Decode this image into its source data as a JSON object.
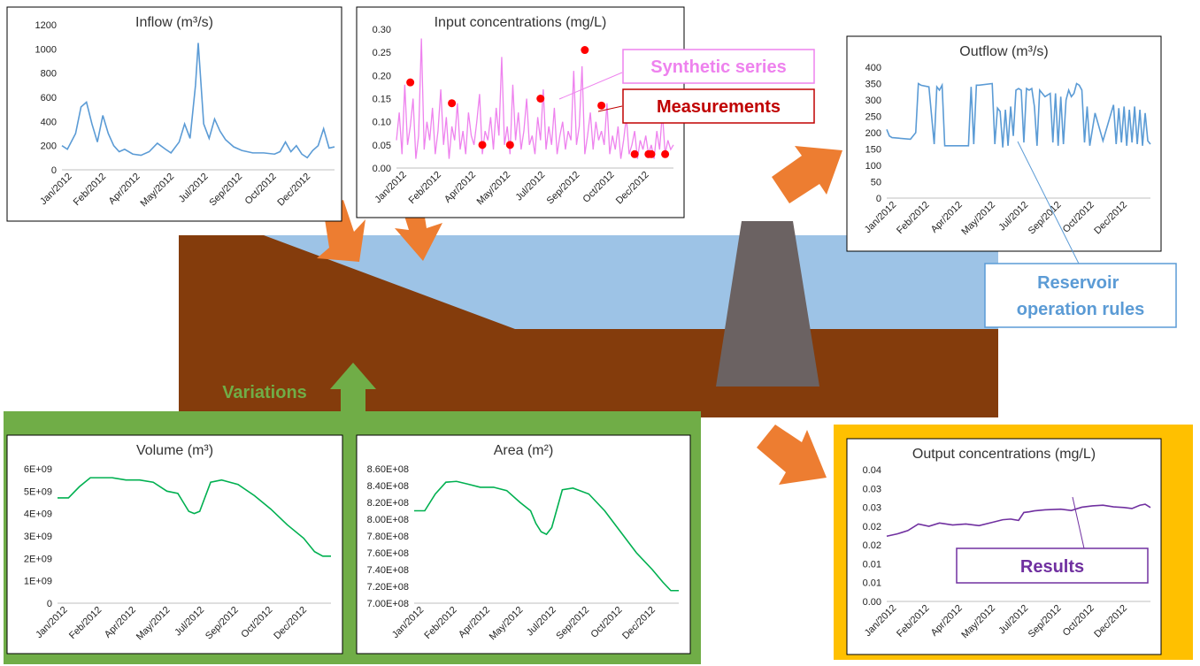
{
  "colors": {
    "soil": "#843c0c",
    "water": "#9dc3e6",
    "dam": "#6b6262",
    "arrow": "#ed7d31",
    "green_panel": "#70ad47",
    "yellow_frame": "#ffc000",
    "inflow_line": "#5b9bd5",
    "synthetic_line": "#ee82ee",
    "measure_dot": "#ff0000",
    "volume_line": "#00b050",
    "output_line": "#7030a0",
    "label_variations": "#70ad47",
    "label_synthetic": "#ee82ee",
    "label_measure": "#c00000",
    "label_rules": "#5b9bd5",
    "label_results": "#7030a0"
  },
  "labels": {
    "synthetic": "Synthetic series",
    "measurements": "Measurements",
    "reservoir_rules": "Reservoir operation rules",
    "variations": "Variations",
    "results": "Results"
  },
  "chart_data": [
    {
      "id": "inflow",
      "type": "line",
      "title": "Inflow (m³/s)",
      "ylim": [
        0,
        1200
      ],
      "yticks": [
        "0",
        "200",
        "400",
        "600",
        "800",
        "1000",
        "1200"
      ],
      "xticks": [
        "Jan/2012",
        "Feb/2012",
        "Apr/2012",
        "May/2012",
        "Jul/2012",
        "Sep/2012",
        "Oct/2012",
        "Dec/2012"
      ],
      "x": [
        0,
        0.02,
        0.05,
        0.07,
        0.09,
        0.11,
        0.13,
        0.15,
        0.17,
        0.19,
        0.21,
        0.23,
        0.26,
        0.29,
        0.32,
        0.35,
        0.38,
        0.4,
        0.43,
        0.45,
        0.47,
        0.49,
        0.5,
        0.52,
        0.54,
        0.56,
        0.58,
        0.6,
        0.63,
        0.66,
        0.7,
        0.74,
        0.78,
        0.8,
        0.82,
        0.84,
        0.86,
        0.88,
        0.9,
        0.92,
        0.94,
        0.96,
        0.98,
        1.0
      ],
      "y": [
        200,
        170,
        300,
        520,
        560,
        380,
        230,
        450,
        300,
        200,
        150,
        170,
        130,
        120,
        150,
        220,
        170,
        140,
        230,
        380,
        260,
        700,
        1050,
        380,
        260,
        420,
        320,
        250,
        190,
        160,
        140,
        140,
        130,
        150,
        230,
        150,
        200,
        130,
        100,
        160,
        200,
        340,
        180,
        190
      ],
      "series": [
        {
          "name": "",
          "color": "#5b9bd5"
        }
      ]
    },
    {
      "id": "input",
      "type": "line",
      "title": "Input concentrations (mg/L)",
      "ylim": [
        0,
        0.3
      ],
      "yticks": [
        "0.00",
        "0.05",
        "0.10",
        "0.15",
        "0.20",
        "0.25",
        "0.30"
      ],
      "xticks": [
        "Jan/2012",
        "Feb/2012",
        "Apr/2012",
        "May/2012",
        "Jul/2012",
        "Sep/2012",
        "Oct/2012",
        "Dec/2012"
      ],
      "series": [
        {
          "name": "Synthetic series",
          "color": "#ee82ee",
          "x": [
            0,
            0.01,
            0.02,
            0.03,
            0.04,
            0.05,
            0.06,
            0.07,
            0.08,
            0.09,
            0.1,
            0.11,
            0.12,
            0.13,
            0.14,
            0.15,
            0.16,
            0.17,
            0.18,
            0.19,
            0.2,
            0.21,
            0.22,
            0.23,
            0.24,
            0.25,
            0.26,
            0.27,
            0.28,
            0.29,
            0.3,
            0.31,
            0.32,
            0.33,
            0.34,
            0.35,
            0.36,
            0.37,
            0.38,
            0.39,
            0.4,
            0.41,
            0.42,
            0.43,
            0.44,
            0.45,
            0.46,
            0.47,
            0.48,
            0.49,
            0.5,
            0.51,
            0.52,
            0.53,
            0.54,
            0.55,
            0.56,
            0.57,
            0.58,
            0.59,
            0.6,
            0.61,
            0.62,
            0.63,
            0.64,
            0.65,
            0.66,
            0.67,
            0.68,
            0.69,
            0.7,
            0.71,
            0.72,
            0.73,
            0.74,
            0.75,
            0.76,
            0.77,
            0.78,
            0.79,
            0.8,
            0.81,
            0.82,
            0.83,
            0.84,
            0.85,
            0.86,
            0.87,
            0.88,
            0.89,
            0.9,
            0.91,
            0.92,
            0.93,
            0.94,
            0.95,
            0.96,
            0.97,
            0.98,
            0.99,
            1.0
          ],
          "y": [
            0.06,
            0.12,
            0.03,
            0.18,
            0.05,
            0.09,
            0.15,
            0.02,
            0.07,
            0.28,
            0.04,
            0.1,
            0.06,
            0.13,
            0.03,
            0.08,
            0.17,
            0.05,
            0.11,
            0.02,
            0.09,
            0.06,
            0.14,
            0.04,
            0.08,
            0.03,
            0.12,
            0.07,
            0.05,
            0.1,
            0.16,
            0.03,
            0.08,
            0.06,
            0.11,
            0.04,
            0.13,
            0.07,
            0.24,
            0.05,
            0.09,
            0.03,
            0.18,
            0.06,
            0.12,
            0.04,
            0.08,
            0.15,
            0.05,
            0.07,
            0.03,
            0.11,
            0.06,
            0.17,
            0.04,
            0.09,
            0.05,
            0.13,
            0.03,
            0.07,
            0.1,
            0.04,
            0.08,
            0.06,
            0.21,
            0.05,
            0.09,
            0.22,
            0.03,
            0.07,
            0.12,
            0.04,
            0.1,
            0.06,
            0.08,
            0.05,
            0.14,
            0.03,
            0.07,
            0.04,
            0.09,
            0.02,
            0.06,
            0.11,
            0.03,
            0.05,
            0.08,
            0.02,
            0.06,
            0.04,
            0.07,
            0.03,
            0.05,
            0.02,
            0.08,
            0.04,
            0.12,
            0.03,
            0.06,
            0.04,
            0.05
          ]
        },
        {
          "name": "Measurements",
          "color": "#ff0000",
          "marker": "dot",
          "x": [
            0.05,
            0.2,
            0.31,
            0.41,
            0.52,
            0.68,
            0.74,
            0.86,
            0.91,
            0.92,
            0.97
          ],
          "y": [
            0.185,
            0.14,
            0.05,
            0.05,
            0.15,
            0.255,
            0.135,
            0.03,
            0.03,
            0.03,
            0.03
          ]
        }
      ]
    },
    {
      "id": "outflow",
      "type": "line",
      "title": "Outflow (m³/s)",
      "ylim": [
        0,
        400
      ],
      "yticks": [
        "0",
        "50",
        "100",
        "150",
        "200",
        "250",
        "300",
        "350",
        "400"
      ],
      "xticks": [
        "Jan/2012",
        "Feb/2012",
        "Apr/2012",
        "May/2012",
        "Jul/2012",
        "Sep/2012",
        "Oct/2012",
        "Dec/2012"
      ],
      "x": [
        0,
        0.01,
        0.02,
        0.09,
        0.11,
        0.12,
        0.13,
        0.16,
        0.18,
        0.19,
        0.2,
        0.21,
        0.22,
        0.23,
        0.31,
        0.32,
        0.33,
        0.34,
        0.35,
        0.4,
        0.41,
        0.42,
        0.43,
        0.44,
        0.45,
        0.46,
        0.47,
        0.48,
        0.49,
        0.5,
        0.51,
        0.52,
        0.53,
        0.54,
        0.55,
        0.56,
        0.57,
        0.58,
        0.59,
        0.6,
        0.62,
        0.63,
        0.64,
        0.65,
        0.66,
        0.67,
        0.68,
        0.69,
        0.7,
        0.71,
        0.72,
        0.73,
        0.74,
        0.75,
        0.76,
        0.77,
        0.79,
        0.82,
        0.86,
        0.87,
        0.88,
        0.89,
        0.9,
        0.91,
        0.92,
        0.93,
        0.94,
        0.95,
        0.96,
        0.97,
        0.98,
        0.99,
        1.0
      ],
      "y": [
        210,
        190,
        185,
        180,
        200,
        350,
        345,
        340,
        165,
        340,
        330,
        345,
        160,
        160,
        160,
        340,
        165,
        345,
        345,
        350,
        165,
        275,
        265,
        155,
        270,
        160,
        280,
        190,
        330,
        335,
        330,
        170,
        335,
        330,
        335,
        280,
        160,
        330,
        320,
        310,
        320,
        170,
        320,
        160,
        310,
        165,
        300,
        330,
        310,
        320,
        350,
        345,
        330,
        170,
        280,
        160,
        260,
        175,
        285,
        165,
        275,
        170,
        280,
        160,
        270,
        170,
        280,
        165,
        270,
        160,
        260,
        175,
        165
      ]
    },
    {
      "id": "volume",
      "type": "line",
      "title": "Volume (m³)",
      "ylim": [
        0,
        6000000000
      ],
      "yticks": [
        "0",
        "1E+09",
        "2E+09",
        "3E+09",
        "4E+09",
        "5E+09",
        "6E+09"
      ],
      "xticks": [
        "Jan/2012",
        "Feb/2012",
        "Apr/2012",
        "May/2012",
        "Jul/2012",
        "Sep/2012",
        "Oct/2012",
        "Dec/2012"
      ],
      "x": [
        0,
        0.04,
        0.08,
        0.12,
        0.16,
        0.2,
        0.25,
        0.3,
        0.35,
        0.4,
        0.44,
        0.46,
        0.48,
        0.5,
        0.52,
        0.56,
        0.6,
        0.66,
        0.72,
        0.78,
        0.84,
        0.9,
        0.94,
        0.97,
        1.0
      ],
      "y": [
        4700000000.0,
        4700000000.0,
        5200000000.0,
        5600000000.0,
        5600000000.0,
        5600000000.0,
        5500000000.0,
        5500000000.0,
        5400000000.0,
        5000000000.0,
        4900000000.0,
        4500000000.0,
        4100000000.0,
        4000000000.0,
        4100000000.0,
        5400000000.0,
        5500000000.0,
        5300000000.0,
        4800000000.0,
        4200000000.0,
        3500000000.0,
        2900000000.0,
        2300000000.0,
        2100000000.0,
        2100000000.0
      ]
    },
    {
      "id": "area",
      "type": "line",
      "title": "Area (m²)",
      "ylim": [
        700000000,
        860000000
      ],
      "yticks": [
        "7.00E+08",
        "7.20E+08",
        "7.40E+08",
        "7.60E+08",
        "7.80E+08",
        "8.00E+08",
        "8.20E+08",
        "8.40E+08",
        "8.60E+08"
      ],
      "xticks": [
        "Jan/2012",
        "Feb/2012",
        "Apr/2012",
        "May/2012",
        "Jul/2012",
        "Sep/2012",
        "Oct/2012",
        "Dec/2012"
      ],
      "x": [
        0,
        0.04,
        0.08,
        0.12,
        0.16,
        0.2,
        0.25,
        0.3,
        0.35,
        0.4,
        0.44,
        0.46,
        0.48,
        0.5,
        0.52,
        0.56,
        0.6,
        0.66,
        0.72,
        0.78,
        0.84,
        0.9,
        0.94,
        0.97,
        1.0
      ],
      "y": [
        810000000.0,
        810000000.0,
        830000000.0,
        844000000.0,
        845000000.0,
        842000000.0,
        838000000.0,
        838000000.0,
        834000000.0,
        820000000.0,
        810000000.0,
        795000000.0,
        785000000.0,
        782000000.0,
        790000000.0,
        835000000.0,
        837000000.0,
        830000000.0,
        810000000.0,
        785000000.0,
        760000000.0,
        740000000.0,
        725000000.0,
        715000000.0,
        715000000.0
      ]
    },
    {
      "id": "output",
      "type": "line",
      "title": "Output concentrations (mg/L)",
      "ylim": [
        0,
        0.04
      ],
      "yticks": [
        "0.00",
        "0.01",
        "0.01",
        "0.02",
        "0.02",
        "0.03",
        "0.03",
        "0.04"
      ],
      "xticks": [
        "Jan/2012",
        "Feb/2012",
        "Apr/2012",
        "May/2012",
        "Jul/2012",
        "Sep/2012",
        "Oct/2012",
        "Dec/2012"
      ],
      "x": [
        0,
        0.04,
        0.08,
        0.12,
        0.16,
        0.2,
        0.25,
        0.3,
        0.35,
        0.4,
        0.44,
        0.47,
        0.5,
        0.52,
        0.54,
        0.56,
        0.6,
        0.66,
        0.7,
        0.74,
        0.78,
        0.82,
        0.86,
        0.9,
        0.93,
        0.96,
        0.98,
        1.0
      ],
      "y": [
        0.0198,
        0.0205,
        0.0215,
        0.0235,
        0.0228,
        0.0238,
        0.0232,
        0.0235,
        0.023,
        0.024,
        0.0248,
        0.025,
        0.0246,
        0.027,
        0.0272,
        0.0275,
        0.0278,
        0.028,
        0.0276,
        0.0286,
        0.029,
        0.0292,
        0.0287,
        0.0285,
        0.0282,
        0.0292,
        0.0295,
        0.0285
      ]
    }
  ]
}
